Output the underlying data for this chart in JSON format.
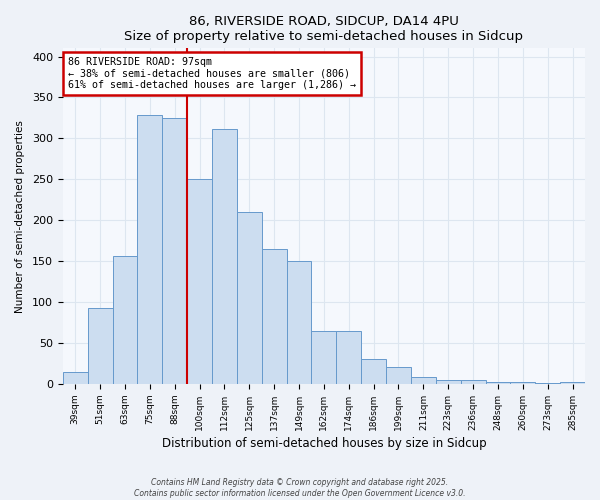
{
  "title": "86, RIVERSIDE ROAD, SIDCUP, DA14 4PU",
  "subtitle": "Size of property relative to semi-detached houses in Sidcup",
  "xlabel": "Distribution of semi-detached houses by size in Sidcup",
  "ylabel": "Number of semi-detached properties",
  "bar_labels": [
    "39sqm",
    "51sqm",
    "63sqm",
    "75sqm",
    "88sqm",
    "100sqm",
    "112sqm",
    "125sqm",
    "137sqm",
    "149sqm",
    "162sqm",
    "174sqm",
    "186sqm",
    "199sqm",
    "211sqm",
    "223sqm",
    "236sqm",
    "248sqm",
    "260sqm",
    "273sqm",
    "285sqm"
  ],
  "bar_values": [
    14,
    93,
    156,
    328,
    325,
    250,
    312,
    210,
    165,
    150,
    65,
    65,
    30,
    21,
    9,
    5,
    5,
    3,
    2,
    1,
    3
  ],
  "bar_color": "#ccddf0",
  "bar_edge_color": "#6699cc",
  "ref_line_color": "#cc0000",
  "ref_line_x": 4.5,
  "annotation_title": "86 RIVERSIDE ROAD: 97sqm",
  "annotation_line1": "← 38% of semi-detached houses are smaller (806)",
  "annotation_line2": "61% of semi-detached houses are larger (1,286) →",
  "annotation_box_color": "#ffffff",
  "annotation_box_edge": "#cc0000",
  "ylim": [
    0,
    410
  ],
  "yticks": [
    0,
    50,
    100,
    150,
    200,
    250,
    300,
    350,
    400
  ],
  "footer1": "Contains HM Land Registry data © Crown copyright and database right 2025.",
  "footer2": "Contains public sector information licensed under the Open Government Licence v3.0.",
  "bg_color": "#eef2f8",
  "plot_bg_color": "#f5f8fd",
  "grid_color": "#dde6f0"
}
